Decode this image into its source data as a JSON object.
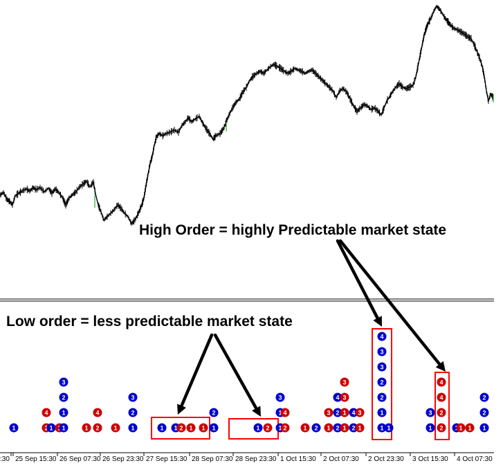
{
  "chart_data": [
    {
      "type": "line",
      "description_label": "",
      "price_path_points": [
        [
          0,
          282
        ],
        [
          5,
          278
        ],
        [
          10,
          288
        ],
        [
          14,
          291
        ],
        [
          18,
          296
        ],
        [
          22,
          283
        ],
        [
          27,
          279
        ],
        [
          32,
          276
        ],
        [
          38,
          273
        ],
        [
          43,
          276
        ],
        [
          48,
          271
        ],
        [
          52,
          274
        ],
        [
          58,
          271
        ],
        [
          64,
          277
        ],
        [
          70,
          272
        ],
        [
          75,
          279
        ],
        [
          80,
          273
        ],
        [
          85,
          278
        ],
        [
          90,
          285
        ],
        [
          95,
          296
        ],
        [
          100,
          286
        ],
        [
          105,
          281
        ],
        [
          110,
          277
        ],
        [
          115,
          270
        ],
        [
          120,
          266
        ],
        [
          125,
          262
        ],
        [
          130,
          270
        ],
        [
          135,
          263
        ],
        [
          138,
          280
        ],
        [
          142,
          296
        ],
        [
          146,
          306
        ],
        [
          150,
          318
        ],
        [
          155,
          313
        ],
        [
          160,
          308
        ],
        [
          165,
          303
        ],
        [
          170,
          296
        ],
        [
          175,
          301
        ],
        [
          180,
          308
        ],
        [
          185,
          313
        ],
        [
          190,
          323
        ],
        [
          195,
          318
        ],
        [
          200,
          308
        ],
        [
          205,
          296
        ],
        [
          208,
          286
        ],
        [
          211,
          268
        ],
        [
          214,
          252
        ],
        [
          217,
          236
        ],
        [
          220,
          226
        ],
        [
          223,
          210
        ],
        [
          226,
          198
        ],
        [
          230,
          193
        ],
        [
          235,
          196
        ],
        [
          240,
          193
        ],
        [
          246,
          191
        ],
        [
          252,
          188
        ],
        [
          258,
          191
        ],
        [
          263,
          181
        ],
        [
          268,
          176
        ],
        [
          272,
          170
        ],
        [
          277,
          176
        ],
        [
          282,
          172
        ],
        [
          288,
          168
        ],
        [
          293,
          178
        ],
        [
          298,
          186
        ],
        [
          303,
          193
        ],
        [
          308,
          201
        ],
        [
          312,
          196
        ],
        [
          318,
          193
        ],
        [
          323,
          186
        ],
        [
          327,
          176
        ],
        [
          331,
          166
        ],
        [
          336,
          156
        ],
        [
          341,
          148
        ],
        [
          346,
          143
        ],
        [
          351,
          133
        ],
        [
          356,
          126
        ],
        [
          361,
          116
        ],
        [
          366,
          110
        ],
        [
          371,
          106
        ],
        [
          376,
          103
        ],
        [
          381,
          106
        ],
        [
          386,
          101
        ],
        [
          391,
          96
        ],
        [
          396,
          93
        ],
        [
          401,
          96
        ],
        [
          406,
          99
        ],
        [
          411,
          103
        ],
        [
          416,
          106
        ],
        [
          421,
          103
        ],
        [
          426,
          99
        ],
        [
          431,
          101
        ],
        [
          436,
          103
        ],
        [
          441,
          106
        ],
        [
          446,
          103
        ],
        [
          451,
          101
        ],
        [
          456,
          106
        ],
        [
          461,
          111
        ],
        [
          466,
          116
        ],
        [
          471,
          121
        ],
        [
          476,
          126
        ],
        [
          481,
          131
        ],
        [
          486,
          141
        ],
        [
          491,
          131
        ],
        [
          496,
          128
        ],
        [
          501,
          133
        ],
        [
          506,
          143
        ],
        [
          511,
          153
        ],
        [
          516,
          161
        ],
        [
          521,
          156
        ],
        [
          526,
          151
        ],
        [
          531,
          153
        ],
        [
          536,
          158
        ],
        [
          541,
          156
        ],
        [
          546,
          160
        ],
        [
          551,
          166
        ],
        [
          555,
          156
        ],
        [
          559,
          146
        ],
        [
          563,
          140
        ],
        [
          567,
          133
        ],
        [
          572,
          126
        ],
        [
          577,
          121
        ],
        [
          582,
          126
        ],
        [
          587,
          128
        ],
        [
          592,
          126
        ],
        [
          597,
          123
        ],
        [
          601,
          111
        ],
        [
          604,
          96
        ],
        [
          607,
          81
        ],
        [
          610,
          66
        ],
        [
          613,
          51
        ],
        [
          616,
          41
        ],
        [
          619,
          33
        ],
        [
          623,
          26
        ],
        [
          627,
          16
        ],
        [
          631,
          9
        ],
        [
          635,
          13
        ],
        [
          639,
          19
        ],
        [
          643,
          26
        ],
        [
          647,
          31
        ],
        [
          651,
          36
        ],
        [
          656,
          41
        ],
        [
          661,
          43
        ],
        [
          666,
          46
        ],
        [
          671,
          49
        ],
        [
          676,
          53
        ],
        [
          681,
          56
        ],
        [
          686,
          66
        ],
        [
          690,
          76
        ],
        [
          694,
          86
        ],
        [
          697,
          96
        ],
        [
          700,
          111
        ],
        [
          703,
          131
        ],
        [
          706,
          146
        ],
        [
          709,
          136
        ],
        [
          713,
          141
        ]
      ]
    },
    {
      "type": "scatter",
      "x_tick_labels": [
        "25 Sep 15:30",
        "26 Sep 07:30",
        "26 Sep 23:30",
        "27 Sep 15:30",
        "28 Sep 07:30",
        "28 Sep 23:30",
        "1 Oct 15:30",
        "2 Oct 07:30",
        "2 Oct 23:30",
        "3 Oct 15:30",
        "4 Oct 07:30"
      ],
      "partial_first_tick": ":30",
      "series": [
        {
          "color": "#cc0000",
          "points": [
            {
              "i": 0,
              "level": 1
            },
            {
              "i": 1,
              "level": 2
            },
            {
              "i": 2,
              "level": 4
            },
            {
              "i": 3,
              "level": 1
            },
            {
              "i": 4,
              "level": 1
            },
            {
              "i": 5,
              "level": 2
            },
            {
              "i": 6,
              "level": 1
            },
            {
              "i": 7,
              "level": 2
            },
            {
              "i": 8,
              "level": 1
            },
            {
              "i": 9,
              "level": 1
            },
            {
              "i": 10,
              "level": 2
            },
            {
              "i": 11,
              "level": 4
            },
            {
              "i": 12,
              "level": 1
            },
            {
              "i": 13,
              "level": 1
            },
            {
              "i": 14,
              "level": 2
            },
            {
              "i": 15,
              "level": 1
            },
            {
              "i": 16,
              "level": 1
            },
            {
              "i": 17,
              "level": 2
            },
            {
              "i": 18,
              "level": 3
            },
            {
              "i": 19,
              "level": 3
            },
            {
              "i": 20,
              "level": 2
            },
            {
              "i": 21,
              "level": 4
            },
            {
              "i": 22,
              "level": 1
            },
            {
              "i": 23,
              "level": 2
            },
            {
              "i": 24,
              "level": 2
            },
            {
              "i": 25,
              "level": 4
            }
          ]
        },
        {
          "color": "#0000cc",
          "points": [
            {
              "i": 1,
              "level": 1
            },
            {
              "i": 2,
              "level": 1
            },
            {
              "i": 3,
              "level": 3
            },
            {
              "i": 4,
              "level": 2
            },
            {
              "i": 5,
              "level": 1
            },
            {
              "i": 6,
              "level": 1
            },
            {
              "i": 7,
              "level": 2
            },
            {
              "i": 8,
              "level": 3
            },
            {
              "i": 9,
              "level": 1
            },
            {
              "i": 10,
              "level": 1
            },
            {
              "i": 11,
              "level": 1
            },
            {
              "i": 12,
              "level": 2
            },
            {
              "i": 13,
              "level": 1
            },
            {
              "i": 14,
              "level": 2
            },
            {
              "i": 15,
              "level": 1
            },
            {
              "i": 16,
              "level": 1
            },
            {
              "i": 17,
              "level": 1
            },
            {
              "i": 18,
              "level": 3
            },
            {
              "i": 19,
              "level": 1
            },
            {
              "i": 20,
              "level": 1
            },
            {
              "i": 21,
              "level": 2
            },
            {
              "i": 22,
              "level": 4
            },
            {
              "i": 23,
              "level": 1
            },
            {
              "i": 24,
              "level": 2
            },
            {
              "i": 25,
              "level": 4
            }
          ]
        }
      ],
      "markers": [
        {
          "x": 20,
          "label": "1",
          "color": "#0000cc"
        },
        {
          "x": 67,
          "label": "2",
          "color": "#cc0000"
        },
        {
          "x": 67,
          "label": "4",
          "color": "#cc0000",
          "row": 1
        },
        {
          "x": 74,
          "label": "1",
          "color": "#0000cc"
        },
        {
          "x": 86,
          "label": "1",
          "color": "#cc0000"
        },
        {
          "x": 92,
          "label": "1",
          "color": "#0000cc"
        },
        {
          "x": 92,
          "label": "1",
          "color": "#0000cc",
          "row": 1
        },
        {
          "x": 92,
          "label": "2",
          "color": "#0000cc",
          "row": 2
        },
        {
          "x": 92,
          "label": "3",
          "color": "#0000cc",
          "row": 3
        },
        {
          "x": 125,
          "label": "1",
          "color": "#cc0000"
        },
        {
          "x": 141,
          "label": "2",
          "color": "#cc0000"
        },
        {
          "x": 141,
          "label": "4",
          "color": "#cc0000",
          "row": 1
        },
        {
          "x": 167,
          "label": "1",
          "color": "#cc0000"
        },
        {
          "x": 192,
          "label": "1",
          "color": "#0000cc"
        },
        {
          "x": 192,
          "label": "2",
          "color": "#0000cc",
          "row": 1
        },
        {
          "x": 192,
          "label": "3",
          "color": "#0000cc",
          "row": 2
        },
        {
          "x": 234,
          "label": "1",
          "color": "#0000cc"
        },
        {
          "x": 254,
          "label": "1",
          "color": "#0000cc"
        },
        {
          "x": 262,
          "label": "2",
          "color": "#cc0000"
        },
        {
          "x": 276,
          "label": "1",
          "color": "#cc0000"
        },
        {
          "x": 294,
          "label": "1",
          "color": "#cc0000"
        },
        {
          "x": 309,
          "label": "1",
          "color": "#0000cc"
        },
        {
          "x": 309,
          "label": "2",
          "color": "#0000cc",
          "row": 1
        },
        {
          "x": 373,
          "label": "1",
          "color": "#0000cc"
        },
        {
          "x": 387,
          "label": "2",
          "color": "#cc0000"
        },
        {
          "x": 405,
          "label": "1",
          "color": "#0000cc"
        },
        {
          "x": 412,
          "label": "2",
          "color": "#cc0000"
        },
        {
          "x": 405,
          "label": "1",
          "color": "#0000cc",
          "row": 1
        },
        {
          "x": 412,
          "label": "4",
          "color": "#cc0000",
          "row": 1
        },
        {
          "x": 405,
          "label": "3",
          "color": "#0000cc",
          "row": 2
        },
        {
          "x": 441,
          "label": "1",
          "color": "#cc0000"
        },
        {
          "x": 457,
          "label": "2",
          "color": "#0000cc"
        },
        {
          "x": 475,
          "label": "1",
          "color": "#cc0000"
        },
        {
          "x": 488,
          "label": "2",
          "color": "#0000cc"
        },
        {
          "x": 498,
          "label": "1",
          "color": "#cc0000"
        },
        {
          "x": 511,
          "label": "2",
          "color": "#0000cc"
        },
        {
          "x": 520,
          "label": "1",
          "color": "#cc0000"
        },
        {
          "x": 475,
          "label": "3",
          "color": "#cc0000",
          "row": 1
        },
        {
          "x": 488,
          "label": "2",
          "color": "#0000cc",
          "row": 1
        },
        {
          "x": 498,
          "label": "1",
          "color": "#cc0000",
          "row": 1
        },
        {
          "x": 511,
          "label": "4",
          "color": "#0000cc",
          "row": 1
        },
        {
          "x": 520,
          "label": "3",
          "color": "#cc0000",
          "row": 1
        },
        {
          "x": 488,
          "label": "4",
          "color": "#0000cc",
          "row": 2
        },
        {
          "x": 498,
          "label": "3",
          "color": "#cc0000",
          "row": 2
        },
        {
          "x": 498,
          "label": "3",
          "color": "#cc0000",
          "row": 3
        },
        {
          "x": 552,
          "label": "1",
          "color": "#0000cc"
        },
        {
          "x": 562,
          "label": "1",
          "color": "#0000cc"
        },
        {
          "x": 552,
          "label": "1",
          "color": "#0000cc",
          "row": 1
        },
        {
          "x": 552,
          "label": "2",
          "color": "#0000cc",
          "row": 2
        },
        {
          "x": 552,
          "label": "2",
          "color": "#0000cc",
          "row": 3
        },
        {
          "x": 552,
          "label": "3",
          "color": "#0000cc",
          "row": 4
        },
        {
          "x": 552,
          "label": "3",
          "color": "#0000cc",
          "row": 5
        },
        {
          "x": 552,
          "label": "4",
          "color": "#0000cc",
          "row": 6
        },
        {
          "x": 622,
          "label": "1",
          "color": "#0000cc"
        },
        {
          "x": 638,
          "label": "2",
          "color": "#cc0000"
        },
        {
          "x": 622,
          "label": "3",
          "color": "#0000cc",
          "row": 1
        },
        {
          "x": 638,
          "label": "2",
          "color": "#cc0000",
          "row": 1
        },
        {
          "x": 638,
          "label": "4",
          "color": "#cc0000",
          "row": 2
        },
        {
          "x": 638,
          "label": "4",
          "color": "#cc0000",
          "row": 3
        },
        {
          "x": 660,
          "label": "1",
          "color": "#0000cc"
        },
        {
          "x": 666,
          "label": "1",
          "color": "#cc0000"
        },
        {
          "x": 679,
          "label": "1",
          "color": "#cc0000"
        },
        {
          "x": 700,
          "label": "1",
          "color": "#0000cc"
        },
        {
          "x": 700,
          "label": "2",
          "color": "#0000cc",
          "row": 1
        },
        {
          "x": 700,
          "label": "2",
          "color": "#0000cc",
          "row": 2
        }
      ],
      "highlight_boxes_labels": []
    }
  ],
  "annotations": {
    "high_order": "High Order = highly Predictable market state",
    "low_order": "Low order = less predictable market state"
  }
}
